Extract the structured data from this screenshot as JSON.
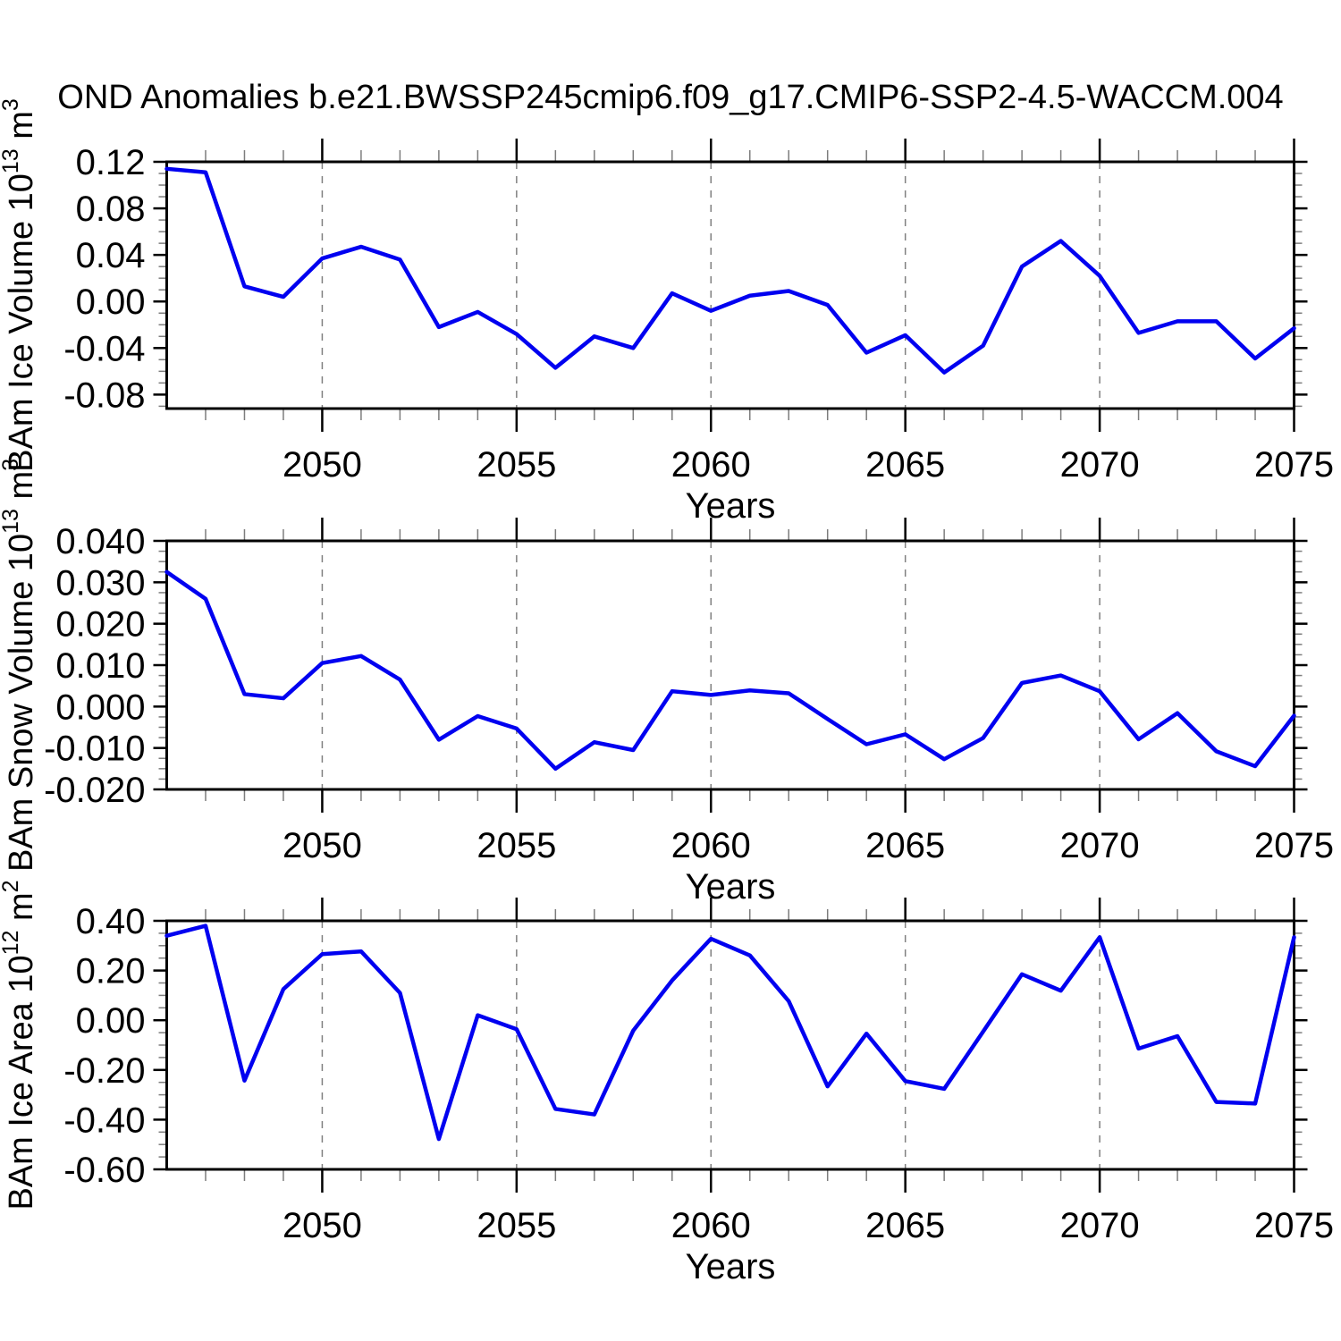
{
  "title": "OND Anomalies b.e21.BWSSP245cmip6.f09_g17.CMIP6-SSP2-4.5-WACCM.004",
  "colors": {
    "line": "#0000f0",
    "axis": "#000000",
    "minor_tick": "#7d7d7d",
    "gridline": "#808080",
    "background": "#ffffff"
  },
  "x_axis": {
    "label": "Years",
    "range": [
      2046,
      2075
    ],
    "major_tick_labels": [
      "2050",
      "2055",
      "2060",
      "2065",
      "2070",
      "2075"
    ],
    "major_ticks": [
      2050,
      2055,
      2060,
      2065,
      2070,
      2075
    ],
    "minor_step": 1,
    "dashed_gridline_years": [
      2050,
      2055,
      2060,
      2065,
      2070
    ]
  },
  "chart_data": [
    {
      "id": "ice-volume",
      "type": "line",
      "ylabel": "BAm Ice Volume 10^13 m^3",
      "ylabel_rich": [
        {
          "t": "BAm Ice Volume 10",
          "sup": false
        },
        {
          "t": "13",
          "sup": true
        },
        {
          "t": " m",
          "sup": false
        },
        {
          "t": "3",
          "sup": true
        }
      ],
      "xlabel": "Years",
      "x": [
        2046,
        2047,
        2048,
        2049,
        2050,
        2051,
        2052,
        2053,
        2054,
        2055,
        2056,
        2057,
        2058,
        2059,
        2060,
        2061,
        2062,
        2063,
        2064,
        2065,
        2066,
        2067,
        2068,
        2069,
        2070,
        2071,
        2072,
        2073,
        2074,
        2075
      ],
      "values": [
        0.114,
        0.111,
        0.013,
        0.004,
        0.037,
        0.047,
        0.036,
        -0.022,
        -0.009,
        -0.028,
        -0.057,
        -0.03,
        -0.04,
        0.007,
        -0.008,
        0.005,
        0.009,
        -0.003,
        -0.044,
        -0.029,
        -0.061,
        -0.038,
        0.03,
        0.052,
        0.022,
        -0.027,
        -0.017,
        -0.017,
        -0.049,
        -0.023
      ],
      "ylim": [
        -0.092,
        0.12
      ],
      "yticks_major": [
        0.12,
        0.08,
        0.04,
        0.0,
        -0.04,
        -0.08
      ],
      "ytick_labels": [
        "0.12",
        "0.08",
        "0.04",
        "0.00",
        "-0.04",
        "-0.08"
      ],
      "y_minor_step": 0.01,
      "grid": "vertical-dashed",
      "legend": "none"
    },
    {
      "id": "snow-volume",
      "type": "line",
      "ylabel": "BAm Snow Volume 10^13 m^3",
      "ylabel_rich": [
        {
          "t": "BAm Snow Volume 10",
          "sup": false
        },
        {
          "t": "13",
          "sup": true
        },
        {
          "t": " m",
          "sup": false
        },
        {
          "t": "3",
          "sup": true
        }
      ],
      "xlabel": "Years",
      "x": [
        2046,
        2047,
        2048,
        2049,
        2050,
        2051,
        2052,
        2053,
        2054,
        2055,
        2056,
        2057,
        2058,
        2059,
        2060,
        2061,
        2062,
        2063,
        2064,
        2065,
        2066,
        2067,
        2068,
        2069,
        2070,
        2071,
        2072,
        2073,
        2074,
        2075
      ],
      "values": [
        0.0325,
        0.026,
        0.003,
        0.002,
        0.0105,
        0.0122,
        0.0065,
        -0.008,
        -0.0023,
        -0.0053,
        -0.015,
        -0.0086,
        -0.0105,
        0.0037,
        0.0028,
        0.0039,
        0.0032,
        -0.003,
        -0.0091,
        -0.0067,
        -0.0127,
        -0.0076,
        0.0057,
        0.0075,
        0.0037,
        -0.0079,
        -0.0016,
        -0.0108,
        -0.0144,
        -0.0022
      ],
      "ylim": [
        -0.02,
        0.04
      ],
      "yticks_major": [
        0.04,
        0.03,
        0.02,
        0.01,
        0.0,
        -0.01,
        -0.02
      ],
      "ytick_labels": [
        "0.040",
        "0.030",
        "0.020",
        "0.010",
        "0.000",
        "-0.010",
        "-0.020"
      ],
      "y_minor_step": 0.0025,
      "grid": "vertical-dashed",
      "legend": "none"
    },
    {
      "id": "ice-area",
      "type": "line",
      "ylabel": "BAm Ice Area 10^12 m^2",
      "ylabel_rich": [
        {
          "t": "BAm Ice Area 10",
          "sup": false
        },
        {
          "t": "12",
          "sup": true
        },
        {
          "t": " m",
          "sup": false
        },
        {
          "t": "2",
          "sup": true
        }
      ],
      "xlabel": "Years",
      "x": [
        2046,
        2047,
        2048,
        2049,
        2050,
        2051,
        2052,
        2053,
        2054,
        2055,
        2056,
        2057,
        2058,
        2059,
        2060,
        2061,
        2062,
        2063,
        2064,
        2065,
        2066,
        2067,
        2068,
        2069,
        2070,
        2071,
        2072,
        2073,
        2074,
        2075
      ],
      "values": [
        0.34,
        0.38,
        -0.243,
        0.125,
        0.266,
        0.277,
        0.11,
        -0.478,
        0.02,
        -0.036,
        -0.357,
        -0.379,
        -0.042,
        0.16,
        0.328,
        0.261,
        0.077,
        -0.266,
        -0.054,
        -0.245,
        -0.276,
        -0.046,
        0.185,
        0.119,
        0.334,
        -0.114,
        -0.064,
        -0.329,
        -0.335,
        0.334
      ],
      "ylim": [
        -0.6,
        0.4
      ],
      "yticks_major": [
        0.4,
        0.2,
        0.0,
        -0.2,
        -0.4,
        -0.6
      ],
      "ytick_labels": [
        "0.40",
        "0.20",
        "0.00",
        "-0.20",
        "-0.40",
        "-0.60"
      ],
      "y_minor_step": 0.05,
      "grid": "vertical-dashed",
      "legend": "none"
    }
  ]
}
